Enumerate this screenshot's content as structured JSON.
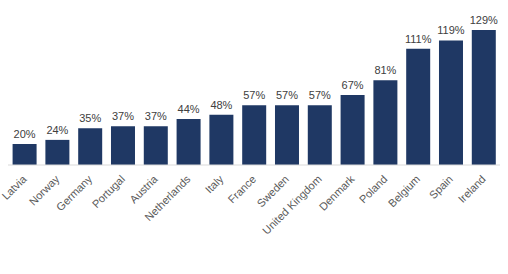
{
  "chart_data": {
    "type": "bar",
    "categories": [
      "Latvia",
      "Norway",
      "Germany",
      "Portugal",
      "Austria",
      "Netherlands",
      "Italy",
      "France",
      "Sweden",
      "United Kingdom",
      "Denmark",
      "Poland",
      "Belgium",
      "Spain",
      "Ireland"
    ],
    "values": [
      20,
      24,
      35,
      37,
      37,
      44,
      48,
      57,
      57,
      57,
      67,
      81,
      111,
      119,
      129
    ],
    "value_labels": [
      "20%",
      "24%",
      "35%",
      "37%",
      "37%",
      "44%",
      "48%",
      "57%",
      "57%",
      "57%",
      "67%",
      "81%",
      "111%",
      "119%",
      "129%"
    ],
    "color": "#1f3864",
    "data_labels": true,
    "tick_labels": "x",
    "grid": false
  }
}
